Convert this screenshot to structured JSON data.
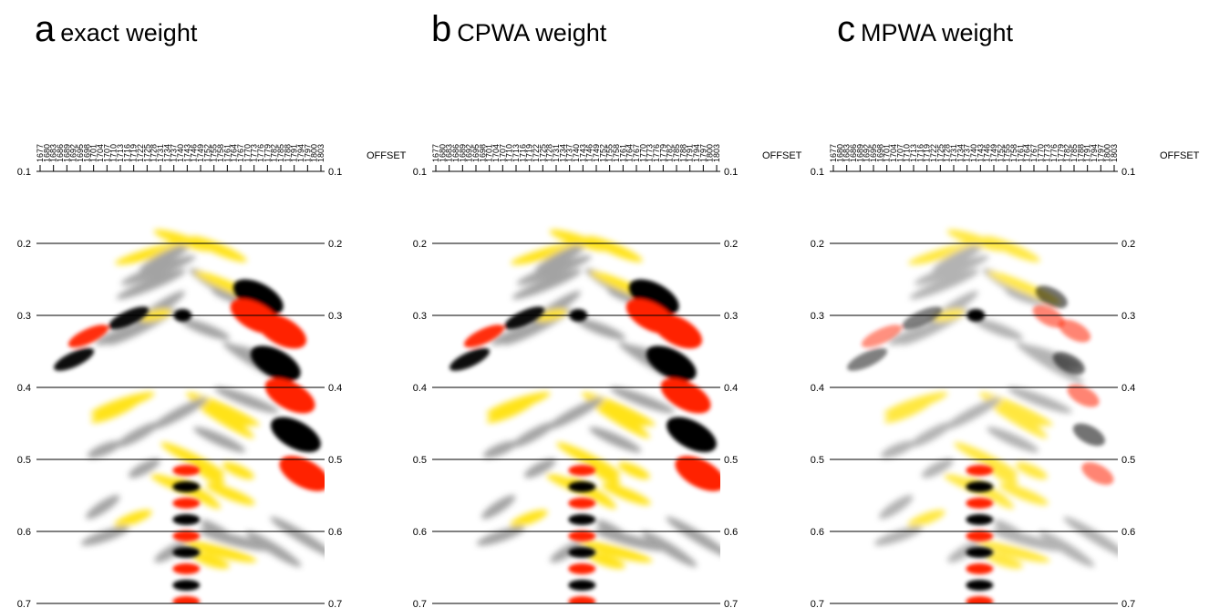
{
  "panels": [
    {
      "letter": "a",
      "title": "exact weight",
      "kind": "exact"
    },
    {
      "letter": "b",
      "title": "CPWA weight",
      "kind": "cpwa"
    },
    {
      "letter": "c",
      "title": "MPWA weight",
      "kind": "mpwa"
    }
  ],
  "axis": {
    "offset_label": "OFFSET",
    "time_ticks": [
      "0.1",
      "0.2",
      "0.3",
      "0.4",
      "0.5",
      "0.6",
      "0.7"
    ]
  },
  "offset_labels": [
    "1677",
    "1680",
    "1683",
    "1686",
    "1689",
    "1692",
    "1695",
    "1698",
    "1701",
    "1704",
    "1707",
    "1710",
    "1713",
    "1716",
    "1719",
    "1722",
    "1725",
    "1728",
    "1731",
    "1734",
    "1737",
    "1740",
    "1743",
    "1746",
    "1749",
    "1752",
    "1755",
    "1758",
    "1761",
    "1764",
    "1767",
    "1770",
    "1773",
    "1776",
    "1779",
    "1782",
    "1785",
    "1788",
    "1791",
    "1794",
    "1797",
    "1800",
    "1803"
  ],
  "colors": {
    "negative_amplitude": "#000000",
    "weak_negative": "#9a9a9a",
    "positive_amplitude": "#ff2200",
    "weak_positive": "#ffe000",
    "background": "#ffffff"
  }
}
